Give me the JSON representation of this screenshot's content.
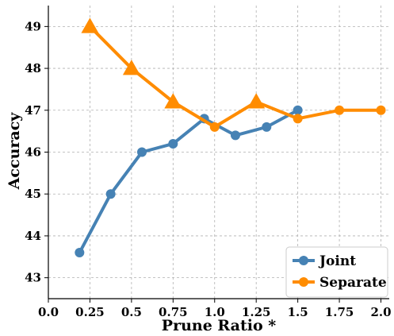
{
  "chart_data": {
    "type": "line",
    "xlabel": "Prune Ratio *",
    "ylabel": "Accuracy",
    "xlim": [
      0.0,
      2.05
    ],
    "ylim": [
      42.5,
      49.5
    ],
    "xticks": [
      "0.0",
      "0.25",
      "0.5",
      "0.75",
      "1.0",
      "1.25",
      "1.5",
      "1.75",
      "2.0"
    ],
    "xtick_values": [
      0.0,
      0.25,
      0.5,
      0.75,
      1.0,
      1.25,
      1.5,
      1.75,
      2.0
    ],
    "yticks": [
      "43",
      "44",
      "45",
      "46",
      "47",
      "48",
      "49"
    ],
    "ytick_values": [
      43,
      44,
      45,
      46,
      47,
      48,
      49
    ],
    "grid": true,
    "legend_position": "bottom-right",
    "series": [
      {
        "name": "Joint",
        "color": "#4682b4",
        "marker": "circle",
        "x": [
          0.1875,
          0.375,
          0.5625,
          0.75,
          0.9375,
          1.125,
          1.3125,
          1.5
        ],
        "y": [
          43.6,
          45.0,
          46.0,
          46.2,
          46.8,
          46.4,
          46.6,
          47.0
        ]
      },
      {
        "name": "Separate",
        "color": "#ff8c00",
        "marker": "triangle-then-circle",
        "x": [
          0.25,
          0.5,
          0.75,
          1.0,
          1.25,
          1.5,
          1.75,
          2.0
        ],
        "y": [
          49.0,
          48.0,
          47.2,
          46.6,
          47.2,
          46.8,
          47.0,
          47.0
        ],
        "markers": [
          "triangle",
          "triangle",
          "triangle",
          "circle",
          "triangle",
          "circle",
          "circle",
          "circle"
        ]
      }
    ]
  }
}
